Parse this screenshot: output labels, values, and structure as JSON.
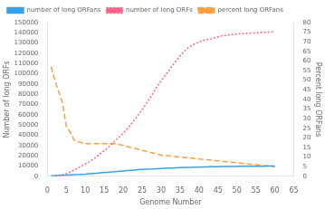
{
  "chart_data": {
    "type": "line",
    "xlabel": "Genome Number",
    "ylabel": "Number of long ORFs",
    "y2label": "Percent long ORFans",
    "xlim": [
      0,
      65
    ],
    "xticks": [
      0,
      5,
      10,
      15,
      20,
      25,
      30,
      35,
      40,
      45,
      50,
      55,
      60,
      65
    ],
    "ylim": [
      0,
      150000
    ],
    "yticks": [
      0,
      10000,
      20000,
      30000,
      40000,
      50000,
      60000,
      70000,
      80000,
      90000,
      100000,
      110000,
      120000,
      130000,
      140000,
      150000
    ],
    "y2lim": [
      0,
      80
    ],
    "y2ticks": [
      0,
      5,
      10,
      15,
      20,
      25,
      30,
      35,
      40,
      45,
      50,
      55,
      60,
      65,
      70,
      75,
      80
    ],
    "grid": false,
    "legend": "upper left",
    "x": [
      1,
      2,
      3,
      4,
      5,
      6,
      7,
      8,
      9,
      10,
      11,
      12,
      13,
      14,
      15,
      16,
      17,
      18,
      19,
      20,
      21,
      22,
      23,
      24,
      25,
      26,
      27,
      28,
      29,
      30,
      31,
      32,
      33,
      34,
      35,
      36,
      37,
      38,
      39,
      40,
      41,
      42,
      43,
      44,
      45,
      46,
      47,
      48,
      49,
      50,
      51,
      52,
      53,
      54,
      55,
      56,
      57,
      58,
      59,
      60
    ],
    "series": [
      {
        "name": "number of long ORFans",
        "line_style": "solid",
        "values": [
          200,
          500,
          700,
          900,
          1100,
          1300,
          1500,
          1700,
          1900,
          2100,
          2400,
          2700,
          3000,
          3300,
          3600,
          3900,
          4200,
          4500,
          4900,
          5200,
          5500,
          5800,
          6100,
          6400,
          6600,
          6800,
          7000,
          7200,
          7400,
          7600,
          7800,
          7950,
          8100,
          8250,
          8400,
          8550,
          8650,
          8750,
          8850,
          8950,
          9050,
          9150,
          9250,
          9350,
          9400,
          9450,
          9500,
          9550,
          9600,
          9650,
          9700,
          9730,
          9760,
          9790,
          9820,
          9840,
          9860,
          9880,
          9900,
          9920
        ]
      },
      {
        "name": "number of long ORFs",
        "line_style": "dotted",
        "values": [
          300,
          600,
          900,
          1500,
          2500,
          4000,
          6000,
          8000,
          10000,
          12000,
          14000,
          16500,
          19000,
          22000,
          25000,
          28000,
          31500,
          35000,
          38500,
          42000,
          46000,
          50500,
          55000,
          60000,
          65000,
          70500,
          76000,
          82000,
          88000,
          93000,
          98000,
          103000,
          108000,
          113000,
          117500,
          121500,
          125000,
          127500,
          129500,
          131000,
          132500,
          133500,
          134000,
          135000,
          136000,
          137000,
          137500,
          138000,
          138500,
          139000,
          139200,
          139400,
          139600,
          139800,
          140000,
          140200,
          140400,
          140600,
          140800,
          141000
        ]
      },
      {
        "name": "percent long ORFans",
        "line_style": "dashed",
        "axis": "y2",
        "values": [
          57,
          50,
          44,
          38,
          26,
          23,
          19,
          18,
          17.5,
          17,
          17,
          17,
          17,
          17,
          17,
          17,
          17,
          17,
          16.5,
          16,
          15.5,
          15,
          14.5,
          14,
          13.5,
          13,
          12.5,
          12,
          11.5,
          11,
          10.8,
          10.6,
          10.4,
          10.2,
          10.0,
          9.8,
          9.6,
          9.4,
          9.2,
          9.0,
          8.8,
          8.6,
          8.4,
          8.2,
          8.0,
          7.8,
          7.6,
          7.4,
          7.2,
          7.0,
          6.8,
          6.6,
          6.4,
          6.2,
          6.0,
          5.8,
          5.6,
          5.4,
          5.2,
          5.0
        ]
      }
    ]
  }
}
